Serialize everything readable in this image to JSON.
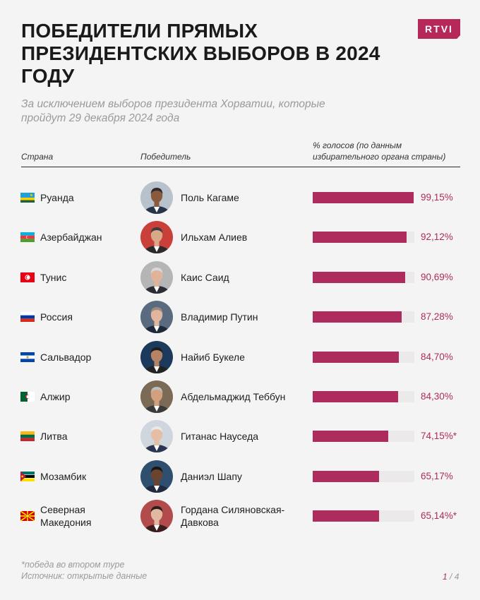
{
  "title": "ПОБЕДИТЕЛИ ПРЯМЫХ ПРЕЗИДЕНТСКИХ ВЫБОРОВ В 2024 ГОДУ",
  "subtitle": "За исключением выборов президента Хорватии, которые пройдут 29 декабря 2024 года",
  "logo": "RTVI",
  "headers": {
    "country": "Страна",
    "winner": "Победитель",
    "votes": "% голосов (по данным избирательного органа страны)"
  },
  "colors": {
    "accent": "#ae2b5d",
    "track": "#ebe9e9",
    "background": "#f5f4f4"
  },
  "chart_data": {
    "type": "bar",
    "orientation": "horizontal",
    "title": "ПОБЕДИТЕЛИ ПРЯМЫХ ПРЕЗИДЕНТСКИХ ВЫБОРОВ В 2024 ГОДУ",
    "xlim": [
      0,
      100
    ],
    "rows": [
      {
        "country": "Руанда",
        "flag": "rwanda-flag-icon",
        "winner": "Поль Кагаме",
        "value": 99.15,
        "label": "99,15%"
      },
      {
        "country": "Азербайджан",
        "flag": "azerbaijan-flag-icon",
        "winner": "Ильхам Алиев",
        "value": 92.12,
        "label": "92,12%"
      },
      {
        "country": "Тунис",
        "flag": "tunisia-flag-icon",
        "winner": "Каис Саид",
        "value": 90.69,
        "label": "90,69%"
      },
      {
        "country": "Россия",
        "flag": "russia-flag-icon",
        "winner": "Владимир Путин",
        "value": 87.28,
        "label": "87,28%"
      },
      {
        "country": "Сальвадор",
        "flag": "el-salvador-flag-icon",
        "winner": "Найиб Букеле",
        "value": 84.7,
        "label": "84,70%"
      },
      {
        "country": "Алжир",
        "flag": "algeria-flag-icon",
        "winner": "Абдельмаджид Теббун",
        "value": 84.3,
        "label": "84,30%"
      },
      {
        "country": "Литва",
        "flag": "lithuania-flag-icon",
        "winner": "Гитанас Науседа",
        "value": 74.15,
        "label": "74,15%*"
      },
      {
        "country": "Мозамбик",
        "flag": "mozambique-flag-icon",
        "winner": "Даниэл Шапу",
        "value": 65.17,
        "label": "65,17%"
      },
      {
        "country": "Северная Македония",
        "flag": "north-macedonia-flag-icon",
        "winner": "Гордана Силяновская-Давкова",
        "value": 65.14,
        "label": "65,14%*"
      }
    ]
  },
  "footer": {
    "note": "*победа во втором туре",
    "source": "Источник: открытые данные",
    "page_current": "1",
    "page_sep": " / ",
    "page_total": "4"
  }
}
